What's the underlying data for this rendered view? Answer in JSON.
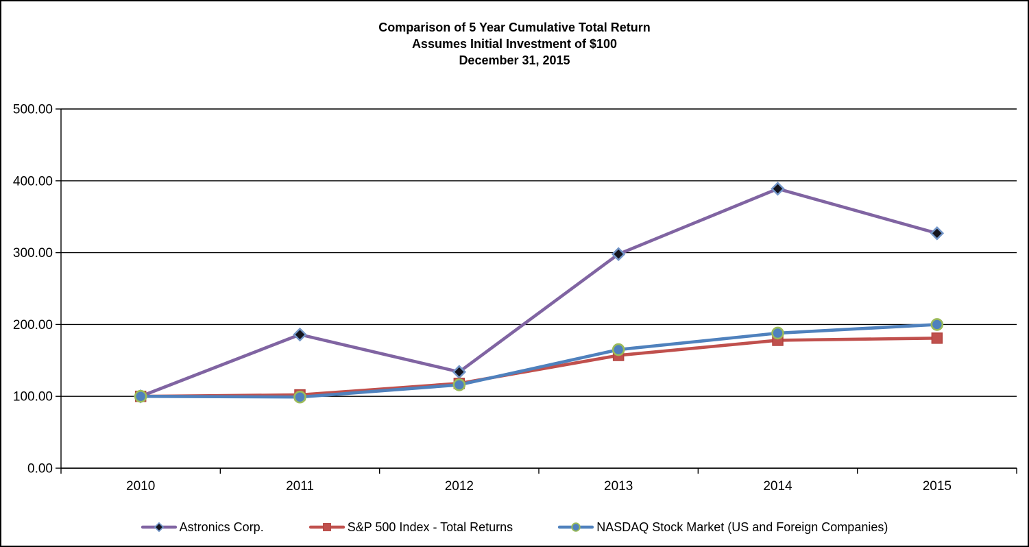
{
  "chart_data": {
    "type": "line",
    "title": "Comparison of 5 Year Cumulative Total Return",
    "subtitle": "Assumes Initial Investment of $100",
    "date_line": "December 31, 2015",
    "x_labels": [
      "2010",
      "2011",
      "2012",
      "2013",
      "2014",
      "2015"
    ],
    "y_ticks": [
      0,
      100,
      200,
      300,
      400,
      500
    ],
    "y_tick_labels": [
      "0.00",
      "100.00",
      "200.00",
      "300.00",
      "400.00",
      "500.00"
    ],
    "ylim": [
      0,
      500
    ],
    "grid": "horizontal",
    "legend_position": "bottom",
    "axis_color": "#000000",
    "background_color": "#ffffff",
    "series": [
      {
        "name": "Astronics Corp.",
        "values": [
          100,
          186,
          134,
          298,
          389,
          327
        ],
        "line_color": "#8064A2",
        "marker": "diamond",
        "marker_fill": "#15151E",
        "marker_stroke": "#7396C8"
      },
      {
        "name": "S&P 500 Index - Total Returns",
        "values": [
          100,
          102,
          118,
          157,
          178,
          181
        ],
        "line_color": "#C0504D",
        "marker": "square",
        "marker_fill": "#C0504D",
        "marker_stroke": "#B3433F"
      },
      {
        "name": "NASDAQ Stock Market (US and Foreign Companies)",
        "values": [
          100,
          99,
          116,
          165,
          188,
          200
        ],
        "line_color": "#4F81BD",
        "marker": "circle",
        "marker_fill": "#4F81BD",
        "marker_stroke": "#9BBB59"
      }
    ]
  }
}
